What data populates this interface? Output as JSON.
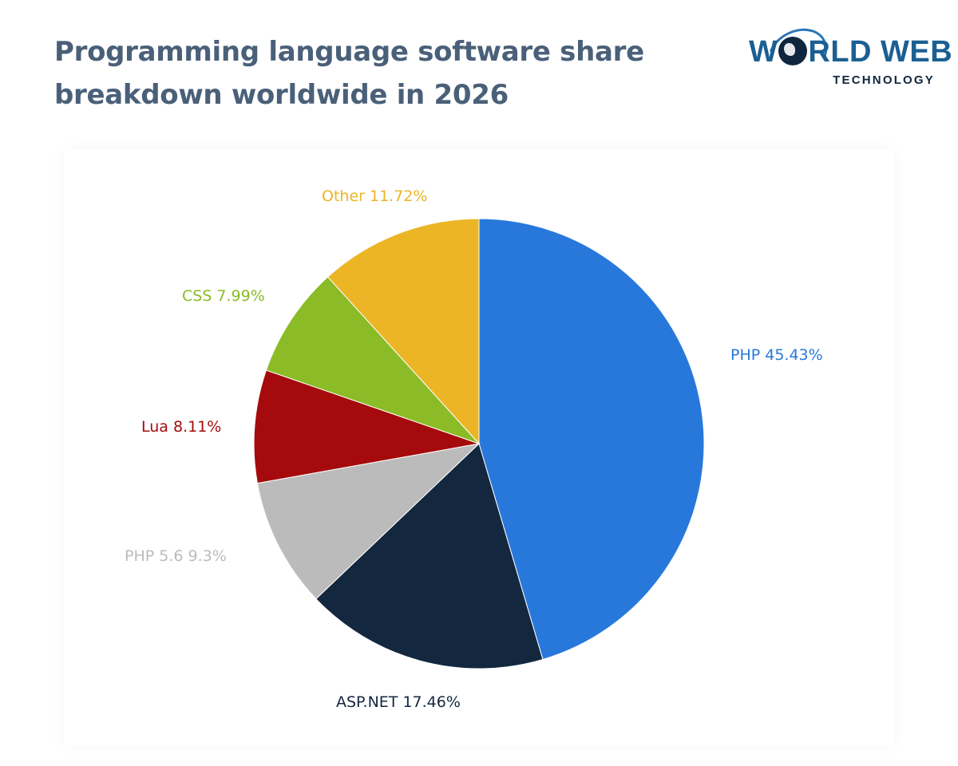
{
  "header": {
    "title": "Programming language software share breakdown worldwide in 2026"
  },
  "logo": {
    "line1_a": "W",
    "line1_b": "RLD WEB",
    "line2": "TECHNOLOGY"
  },
  "chart_data": {
    "type": "pie",
    "title": "Programming language software share breakdown worldwide in 2026",
    "start_angle_deg": 0,
    "direction": "clockwise",
    "slices": [
      {
        "label": "PHP",
        "value": 45.43,
        "display": "PHP 45.43%",
        "color": "#2878dc"
      },
      {
        "label": "ASP.NET",
        "value": 17.46,
        "display": "ASP.NET 17.46%",
        "color": "#13273f"
      },
      {
        "label": "PHP 5.6",
        "value": 9.3,
        "display": "PHP 5.6 9.3%",
        "color": "#bbbbbb"
      },
      {
        "label": "Lua",
        "value": 8.11,
        "display": "Lua 8.11%",
        "color": "#a50b0c"
      },
      {
        "label": "CSS",
        "value": 7.99,
        "display": "CSS 7.99%",
        "color": "#8bbb26"
      },
      {
        "label": "Other",
        "value": 11.72,
        "display": "Other 11.72%",
        "color": "#ebb526"
      }
    ]
  }
}
